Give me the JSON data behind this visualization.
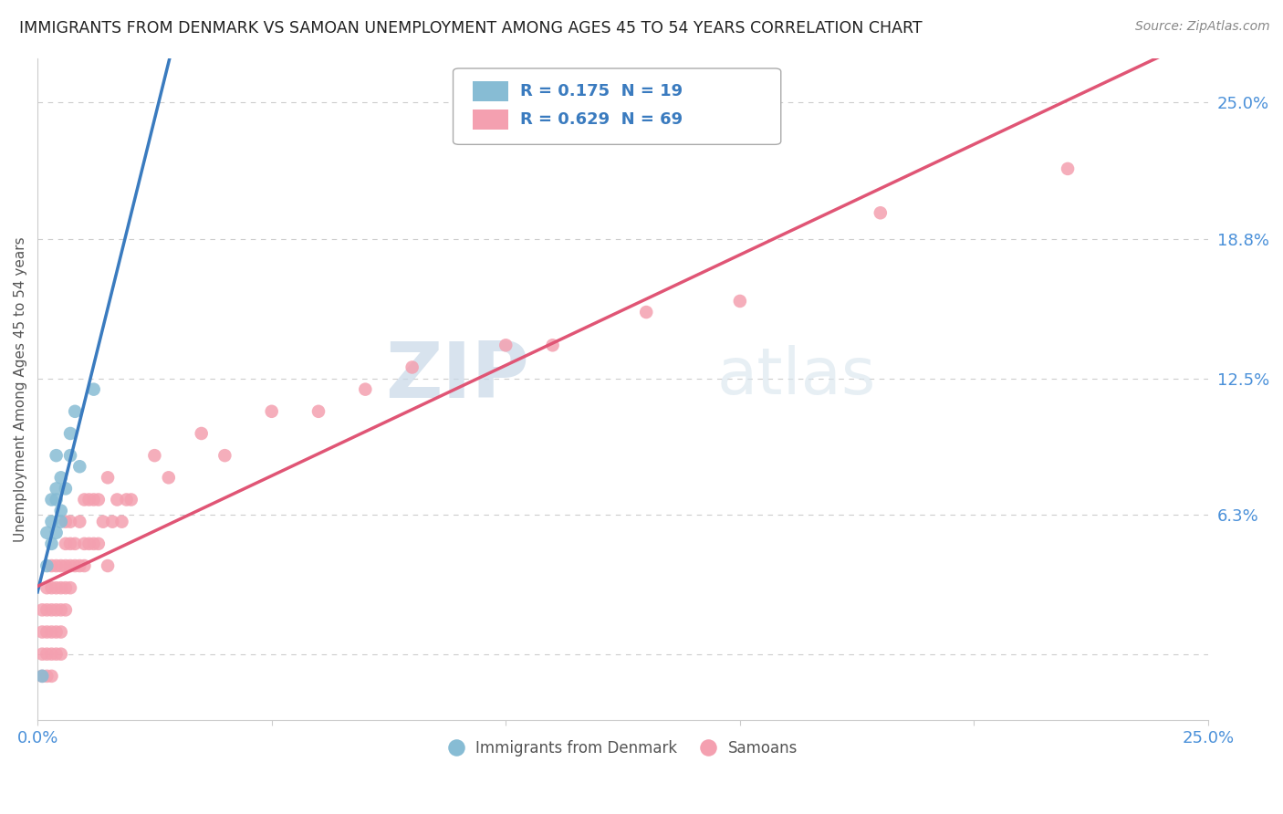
{
  "title": "IMMIGRANTS FROM DENMARK VS SAMOAN UNEMPLOYMENT AMONG AGES 45 TO 54 YEARS CORRELATION CHART",
  "source": "Source: ZipAtlas.com",
  "ylabel": "Unemployment Among Ages 45 to 54 years",
  "xlim": [
    0.0,
    0.25
  ],
  "ylim": [
    -0.03,
    0.27
  ],
  "ytick_positions": [
    0.0,
    0.063,
    0.125,
    0.188,
    0.25
  ],
  "ytick_labels": [
    "",
    "6.3%",
    "12.5%",
    "18.8%",
    "25.0%"
  ],
  "denmark_R": 0.175,
  "denmark_N": 19,
  "samoan_R": 0.629,
  "samoan_N": 69,
  "denmark_color": "#87bcd4",
  "samoan_color": "#f4a0b0",
  "denmark_line_color": "#3a7bbf",
  "samoan_line_color": "#e05575",
  "denmark_dashed_color": "#9bbdd4",
  "watermark_zip": "ZIP",
  "watermark_atlas": "atlas",
  "watermark_color": "#d0dfe8",
  "legend_label_denmark": "Immigrants from Denmark",
  "legend_label_samoan": "Samoans",
  "denmark_points_x": [
    0.001,
    0.002,
    0.002,
    0.003,
    0.003,
    0.003,
    0.004,
    0.004,
    0.004,
    0.004,
    0.005,
    0.005,
    0.005,
    0.006,
    0.007,
    0.007,
    0.008,
    0.009,
    0.012
  ],
  "denmark_points_y": [
    -0.01,
    0.04,
    0.055,
    0.05,
    0.06,
    0.07,
    0.055,
    0.07,
    0.075,
    0.09,
    0.06,
    0.065,
    0.08,
    0.075,
    0.09,
    0.1,
    0.11,
    0.085,
    0.12
  ],
  "samoan_points_x": [
    0.001,
    0.001,
    0.001,
    0.001,
    0.002,
    0.002,
    0.002,
    0.002,
    0.002,
    0.003,
    0.003,
    0.003,
    0.003,
    0.003,
    0.003,
    0.004,
    0.004,
    0.004,
    0.004,
    0.004,
    0.005,
    0.005,
    0.005,
    0.005,
    0.005,
    0.006,
    0.006,
    0.006,
    0.006,
    0.006,
    0.007,
    0.007,
    0.007,
    0.007,
    0.008,
    0.008,
    0.009,
    0.009,
    0.01,
    0.01,
    0.01,
    0.011,
    0.011,
    0.012,
    0.012,
    0.013,
    0.013,
    0.014,
    0.015,
    0.015,
    0.016,
    0.017,
    0.018,
    0.019,
    0.02,
    0.025,
    0.028,
    0.035,
    0.04,
    0.05,
    0.06,
    0.07,
    0.08,
    0.1,
    0.11,
    0.13,
    0.15,
    0.18,
    0.22
  ],
  "samoan_points_y": [
    -0.01,
    0.0,
    0.01,
    0.02,
    -0.01,
    0.0,
    0.01,
    0.02,
    0.03,
    -0.01,
    0.0,
    0.01,
    0.02,
    0.03,
    0.04,
    0.0,
    0.01,
    0.02,
    0.03,
    0.04,
    0.0,
    0.01,
    0.02,
    0.03,
    0.04,
    0.02,
    0.03,
    0.04,
    0.05,
    0.06,
    0.03,
    0.04,
    0.05,
    0.06,
    0.04,
    0.05,
    0.04,
    0.06,
    0.04,
    0.05,
    0.07,
    0.05,
    0.07,
    0.05,
    0.07,
    0.05,
    0.07,
    0.06,
    0.04,
    0.08,
    0.06,
    0.07,
    0.06,
    0.07,
    0.07,
    0.09,
    0.08,
    0.1,
    0.09,
    0.11,
    0.11,
    0.12,
    0.13,
    0.14,
    0.14,
    0.155,
    0.16,
    0.2,
    0.22
  ]
}
